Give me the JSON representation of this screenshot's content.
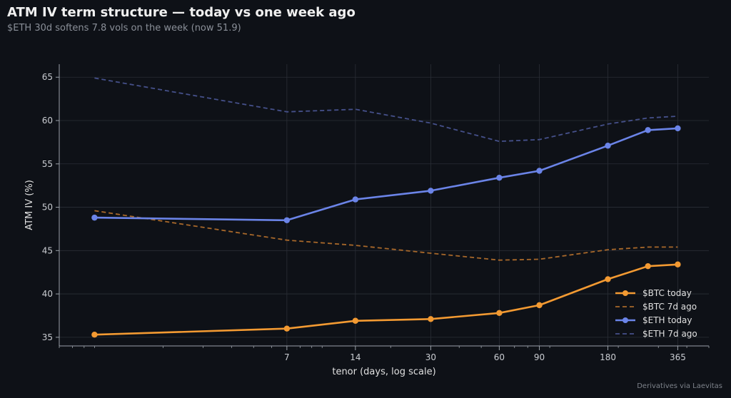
{
  "header": {
    "title": "ATM IV term structure — today vs one week ago",
    "subtitle": "$ETH 30d softens 7.8 vols on the week (now 51.9)"
  },
  "footer": {
    "source": "Derivatives via Laevitas"
  },
  "colors": {
    "background": "#0e1117",
    "btc": "#f39a32",
    "btc_old": "#a8682a",
    "eth": "#6b84e8",
    "eth_old": "#45508a",
    "grid": "#2a2e36",
    "axis": "#9aa0a8"
  },
  "chart_data": {
    "type": "line",
    "xlabel": "tenor (days, log scale)",
    "ylabel": "ATM IV (%)",
    "x_scale": "log",
    "xlim": [
      0.7,
      500
    ],
    "ylim": [
      34,
      66.5
    ],
    "xticks": [
      7,
      14,
      30,
      60,
      90,
      180,
      365
    ],
    "yticks": [
      35,
      40,
      45,
      50,
      55,
      60,
      65
    ],
    "grid": true,
    "legend_position": "lower-right",
    "x": [
      1,
      7,
      14,
      30,
      60,
      90,
      180,
      270,
      365
    ],
    "series": [
      {
        "name": "$BTC today",
        "style": "solid",
        "markers": true,
        "color_key": "btc",
        "values": [
          35.3,
          36.0,
          36.9,
          37.1,
          37.8,
          38.7,
          41.7,
          43.2,
          43.4
        ]
      },
      {
        "name": "$BTC 7d ago",
        "style": "dashed",
        "markers": false,
        "color_key": "btc_old",
        "values": [
          49.6,
          46.2,
          45.6,
          44.7,
          43.9,
          44.0,
          45.1,
          45.4,
          45.4
        ]
      },
      {
        "name": "$ETH today",
        "style": "solid",
        "markers": true,
        "color_key": "eth",
        "values": [
          48.8,
          48.5,
          50.9,
          51.9,
          53.4,
          54.2,
          57.1,
          58.9,
          59.1
        ]
      },
      {
        "name": "$ETH 7d ago",
        "style": "dashed",
        "markers": false,
        "color_key": "eth_old",
        "values": [
          64.9,
          61.0,
          61.3,
          59.7,
          57.6,
          57.8,
          59.6,
          60.3,
          60.5
        ]
      }
    ]
  }
}
